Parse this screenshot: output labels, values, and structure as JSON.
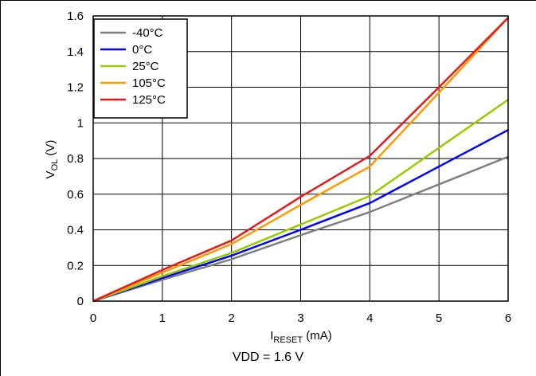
{
  "chart_data": {
    "type": "line",
    "title": "",
    "xlabel": {
      "prefix": "I",
      "subscript": "RESET",
      "suffix": " (mA)"
    },
    "ylabel": {
      "prefix": "V",
      "subscript": "OL",
      "suffix": " (V)"
    },
    "xlim": [
      0,
      6
    ],
    "ylim": [
      0,
      1.6
    ],
    "x_ticks": [
      "0",
      "1",
      "2",
      "3",
      "4",
      "5",
      "6"
    ],
    "y_ticks": [
      "0",
      "0.2",
      "0.4",
      "0.6",
      "0.8",
      "1",
      "1.2",
      "1.4",
      "1.6"
    ],
    "grid": true,
    "legend_position": "top-left",
    "x": [
      0,
      1,
      2,
      3,
      4,
      5,
      6
    ],
    "series": [
      {
        "name": "-40°C",
        "color": "#808080",
        "values": [
          0,
          0.12,
          0.235,
          0.37,
          0.5,
          0.655,
          0.81
        ]
      },
      {
        "name": "0°C",
        "color": "#0000ff",
        "values": [
          0,
          0.13,
          0.255,
          0.4,
          0.55,
          0.755,
          0.96
        ]
      },
      {
        "name": "25°C",
        "color": "#99cc00",
        "values": [
          0,
          0.14,
          0.27,
          0.43,
          0.59,
          0.86,
          1.13
        ]
      },
      {
        "name": "105°C",
        "color": "#ff9900",
        "values": [
          0,
          0.16,
          0.32,
          0.54,
          0.755,
          1.17,
          1.59
        ]
      },
      {
        "name": "125°C",
        "color": "#e31a1c",
        "values": [
          0,
          0.175,
          0.34,
          0.585,
          0.815,
          1.2,
          1.59
        ]
      }
    ]
  },
  "caption": "VDD = 1.6 V"
}
